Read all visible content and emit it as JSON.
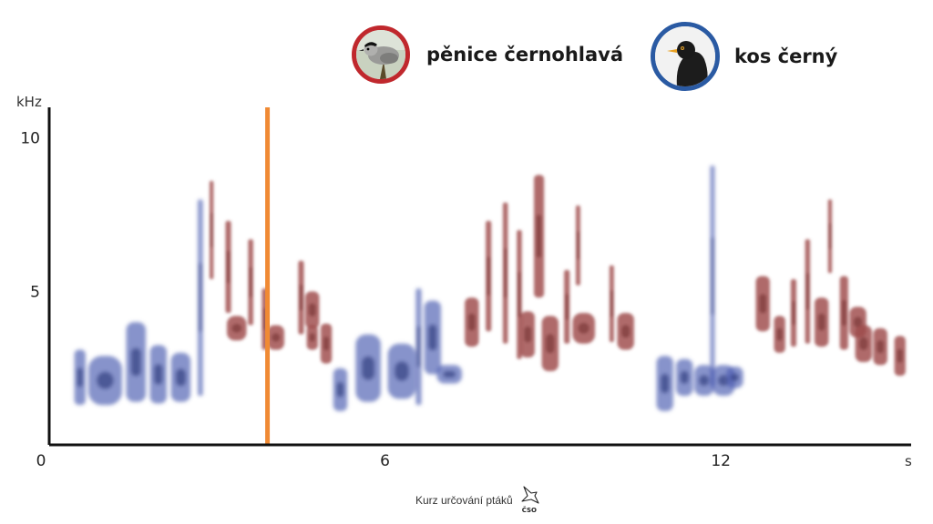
{
  "chart_data": {
    "type": "spectrogram",
    "title": "",
    "xlabel": "",
    "x_unit": "s",
    "ylabel": "kHz",
    "xlim": [
      0,
      15.4
    ],
    "ylim": [
      0,
      11
    ],
    "x_ticks": [
      0,
      6,
      12
    ],
    "y_ticks": [
      5,
      10
    ],
    "cursor_time": 3.9,
    "grid": false,
    "legend_position": "top",
    "series": [
      {
        "name": "pěnice černohlavá",
        "color": "#9e4a4a",
        "segments": [
          {
            "t": 2.9,
            "f": 7.0,
            "h": 3.2,
            "w": 0.07
          },
          {
            "t": 3.2,
            "f": 5.8,
            "h": 3.0,
            "w": 0.1
          },
          {
            "t": 3.35,
            "f": 3.8,
            "h": 0.8,
            "w": 0.35
          },
          {
            "t": 3.6,
            "f": 5.3,
            "h": 2.8,
            "w": 0.09
          },
          {
            "t": 3.85,
            "f": 4.1,
            "h": 2.0,
            "w": 0.1
          },
          {
            "t": 4.05,
            "f": 3.5,
            "h": 0.8,
            "w": 0.3
          },
          {
            "t": 4.5,
            "f": 4.8,
            "h": 2.4,
            "w": 0.1
          },
          {
            "t": 4.7,
            "f": 4.4,
            "h": 1.2,
            "w": 0.25
          },
          {
            "t": 4.7,
            "f": 3.5,
            "h": 0.8,
            "w": 0.2
          },
          {
            "t": 4.95,
            "f": 3.3,
            "h": 1.3,
            "w": 0.2
          },
          {
            "t": 7.55,
            "f": 4.0,
            "h": 1.6,
            "w": 0.25
          },
          {
            "t": 7.85,
            "f": 5.5,
            "h": 3.6,
            "w": 0.1
          },
          {
            "t": 8.15,
            "f": 5.6,
            "h": 4.6,
            "w": 0.09
          },
          {
            "t": 8.4,
            "f": 4.9,
            "h": 4.2,
            "w": 0.09
          },
          {
            "t": 8.55,
            "f": 3.6,
            "h": 1.5,
            "w": 0.25
          },
          {
            "t": 8.75,
            "f": 6.8,
            "h": 4.0,
            "w": 0.18
          },
          {
            "t": 8.95,
            "f": 3.3,
            "h": 1.8,
            "w": 0.3
          },
          {
            "t": 9.25,
            "f": 4.5,
            "h": 2.4,
            "w": 0.1
          },
          {
            "t": 9.45,
            "f": 6.5,
            "h": 2.6,
            "w": 0.08
          },
          {
            "t": 9.55,
            "f": 3.8,
            "h": 1.0,
            "w": 0.4
          },
          {
            "t": 10.05,
            "f": 4.6,
            "h": 2.5,
            "w": 0.08
          },
          {
            "t": 10.3,
            "f": 3.7,
            "h": 1.2,
            "w": 0.3
          },
          {
            "t": 12.75,
            "f": 4.6,
            "h": 1.8,
            "w": 0.25
          },
          {
            "t": 13.05,
            "f": 3.6,
            "h": 1.2,
            "w": 0.2
          },
          {
            "t": 13.3,
            "f": 4.3,
            "h": 2.2,
            "w": 0.1
          },
          {
            "t": 13.55,
            "f": 5.0,
            "h": 3.4,
            "w": 0.09
          },
          {
            "t": 13.8,
            "f": 4.0,
            "h": 1.6,
            "w": 0.25
          },
          {
            "t": 13.95,
            "f": 6.8,
            "h": 2.4,
            "w": 0.07
          },
          {
            "t": 14.2,
            "f": 4.3,
            "h": 2.4,
            "w": 0.15
          },
          {
            "t": 14.45,
            "f": 4.0,
            "h": 1.0,
            "w": 0.3
          },
          {
            "t": 14.55,
            "f": 3.3,
            "h": 1.2,
            "w": 0.3
          },
          {
            "t": 14.85,
            "f": 3.2,
            "h": 1.2,
            "w": 0.25
          },
          {
            "t": 15.2,
            "f": 2.9,
            "h": 1.3,
            "w": 0.2
          }
        ]
      },
      {
        "name": "kos černý",
        "color": "#4e5fb3",
        "segments": [
          {
            "t": 0.55,
            "f": 2.2,
            "h": 1.8,
            "w": 0.2
          },
          {
            "t": 1.0,
            "f": 2.1,
            "h": 1.6,
            "w": 0.6
          },
          {
            "t": 1.55,
            "f": 2.7,
            "h": 2.6,
            "w": 0.35
          },
          {
            "t": 1.95,
            "f": 2.3,
            "h": 1.9,
            "w": 0.3
          },
          {
            "t": 2.35,
            "f": 2.2,
            "h": 1.6,
            "w": 0.35
          },
          {
            "t": 2.7,
            "f": 4.8,
            "h": 6.4,
            "w": 0.09
          },
          {
            "t": 5.2,
            "f": 1.8,
            "h": 1.4,
            "w": 0.25
          },
          {
            "t": 5.7,
            "f": 2.5,
            "h": 2.2,
            "w": 0.45
          },
          {
            "t": 6.3,
            "f": 2.4,
            "h": 1.8,
            "w": 0.5
          },
          {
            "t": 6.6,
            "f": 3.2,
            "h": 3.8,
            "w": 0.1
          },
          {
            "t": 6.85,
            "f": 3.5,
            "h": 2.4,
            "w": 0.3
          },
          {
            "t": 7.15,
            "f": 2.3,
            "h": 0.6,
            "w": 0.45
          },
          {
            "t": 11.0,
            "f": 2.0,
            "h": 1.8,
            "w": 0.3
          },
          {
            "t": 11.35,
            "f": 2.2,
            "h": 1.2,
            "w": 0.3
          },
          {
            "t": 11.7,
            "f": 2.1,
            "h": 1.0,
            "w": 0.35
          },
          {
            "t": 12.05,
            "f": 2.1,
            "h": 1.0,
            "w": 0.4
          },
          {
            "t": 11.85,
            "f": 5.5,
            "h": 7.2,
            "w": 0.08
          },
          {
            "t": 12.25,
            "f": 2.2,
            "h": 0.7,
            "w": 0.3
          }
        ]
      }
    ]
  },
  "legend": [
    {
      "label": "pěnice černohlavá",
      "ring_color": "#c0282d",
      "icon": "blackcap-photo"
    },
    {
      "label": "kos černý",
      "ring_color": "#2a5aa3",
      "icon": "blackbird-photo"
    }
  ],
  "footer": {
    "text": "Kurz určování ptáků",
    "logo_text": "ČSO",
    "logo_icon": "bird-outline-icon"
  },
  "colors": {
    "cursor": "#f08a34",
    "axis": "#111111"
  }
}
